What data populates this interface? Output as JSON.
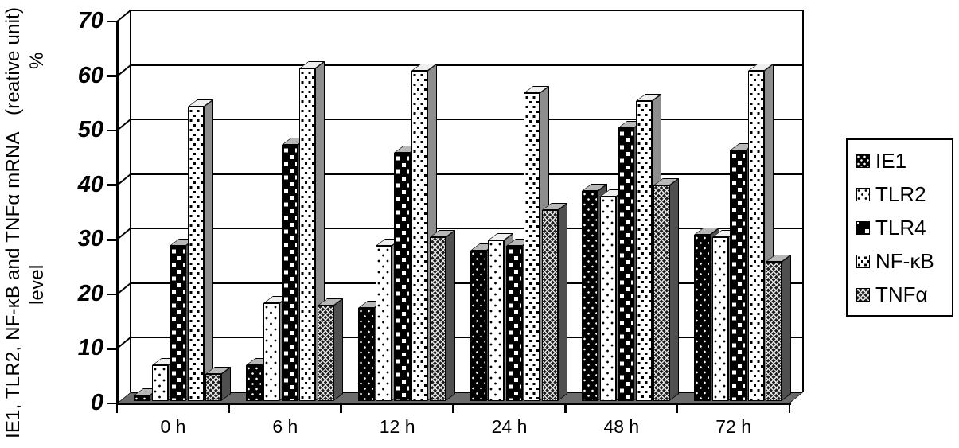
{
  "chart_data": {
    "type": "bar",
    "style": "3d-grouped-columns",
    "title": "",
    "ylabel_line1": "IE1, TLR2, NF-κB and TNFα mRNA level",
    "ylabel_line2": "(reative unit) %",
    "xlabel": "",
    "ylim": [
      0,
      70
    ],
    "ytick_step": 10,
    "yticks": [
      0,
      10,
      20,
      30,
      40,
      50,
      60,
      70
    ],
    "grid": true,
    "legend_position": "right",
    "categories": [
      "0 h",
      "6 h",
      "12 h",
      "24 h",
      "48 h",
      "72 h"
    ],
    "series": [
      {
        "name": "IE1",
        "pattern": "black-dots",
        "values": [
          1,
          6.5,
          17,
          27.5,
          38.5,
          30.5
        ]
      },
      {
        "name": "TLR2",
        "pattern": "white-dots-sparse",
        "values": [
          6.5,
          18,
          28.5,
          29.5,
          37.5,
          30
        ]
      },
      {
        "name": "TLR4",
        "pattern": "black-squares",
        "values": [
          28.5,
          47,
          45.5,
          28.5,
          50,
          46
        ]
      },
      {
        "name": "NF-κB",
        "pattern": "white-dots-dense",
        "values": [
          54,
          61,
          60.5,
          56.5,
          55,
          60.5
        ]
      },
      {
        "name": "TNFα",
        "pattern": "dark-check",
        "values": [
          5,
          17.5,
          30,
          35,
          39.5,
          25.5
        ]
      }
    ],
    "colors": {
      "foreground": "#000000",
      "background": "#ffffff",
      "floor_gray": "#6b6b6b",
      "side_gray_light_bars": "#8d8d8d",
      "side_gray_dark_bars": "#4f4f4f"
    }
  }
}
